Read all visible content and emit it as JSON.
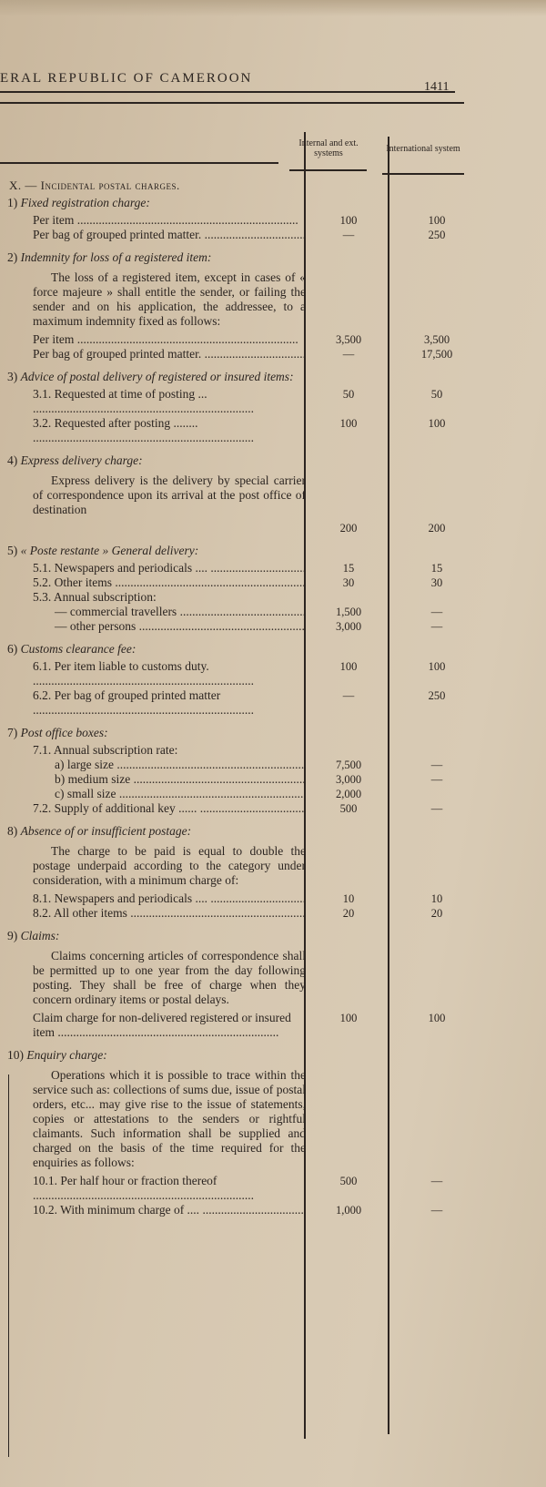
{
  "header": {
    "running_title": "ERAL REPUBLIC OF CAMEROON",
    "page_number": "1411"
  },
  "columns": {
    "internal": "Internal and ext. systems",
    "international": "International system"
  },
  "section": {
    "number": "X. —",
    "title": "Incidental postal charges."
  },
  "blocks": [
    {
      "num": "1)",
      "title": "Fixed registration charge:",
      "rows": [
        {
          "label": "Per item",
          "internal": "100",
          "international": "100"
        },
        {
          "label": "Per bag of grouped printed matter.",
          "internal": "—",
          "international": "250"
        }
      ]
    },
    {
      "num": "2)",
      "title": "Indemnity for loss of a registered item:",
      "paragraph": "The loss of a registered item, except in cases of « force majeure » shall entitle the sender, or failing the sender and on his application, the addressee, to a maximum indemnity fixed as follows:",
      "rows": [
        {
          "label": "Per item",
          "internal": "3,500",
          "international": "3,500"
        },
        {
          "label": "Per bag of grouped printed matter.",
          "internal": "—",
          "international": "17,500"
        }
      ]
    },
    {
      "num": "3)",
      "title": "Advice of postal delivery of registered or insured items:",
      "rows": [
        {
          "label": "3.1. Requested at time of posting ...",
          "internal": "50",
          "international": "50"
        },
        {
          "label": "3.2. Requested after posting ........",
          "internal": "100",
          "international": "100"
        }
      ]
    },
    {
      "num": "4)",
      "title": "Express delivery charge:",
      "paragraph": "Express delivery is the delivery by special carrier of correspondence upon its arrival at the post office of destination",
      "rows": [
        {
          "label": "",
          "internal": "200",
          "international": "200"
        }
      ]
    },
    {
      "num": "5)",
      "title": "« Poste restante » General delivery:",
      "rows": [
        {
          "label": "5.1. Newspapers and periodicals ....",
          "internal": "15",
          "international": "15"
        },
        {
          "label": "5.2. Other items",
          "internal": "30",
          "international": "30"
        },
        {
          "label": "5.3. Annual subscription:",
          "internal": "",
          "international": "",
          "nodots": true
        },
        {
          "label": "— commercial travellers",
          "internal": "1,500",
          "international": "—",
          "sub": true
        },
        {
          "label": "— other persons",
          "internal": "3,000",
          "international": "—",
          "sub": true
        }
      ]
    },
    {
      "num": "6)",
      "title": "Customs clearance fee:",
      "rows": [
        {
          "label": "6.1. Per item liable to customs duty.",
          "internal": "100",
          "international": "100"
        },
        {
          "label": "6.2. Per bag of grouped printed matter",
          "internal": "—",
          "international": "250"
        }
      ]
    },
    {
      "num": "7)",
      "title": "Post office boxes:",
      "rows": [
        {
          "label": "7.1. Annual subscription rate:",
          "internal": "",
          "international": "",
          "nodots": true
        },
        {
          "label": "a) large size",
          "internal": "7,500",
          "international": "—",
          "sub": true
        },
        {
          "label": "b) medium size",
          "internal": "3,000",
          "international": "—",
          "sub": true
        },
        {
          "label": "c) small size",
          "internal": "2,000",
          "international": "",
          "sub": true
        },
        {
          "label": "7.2. Supply of additional key ......",
          "internal": "500",
          "international": "—"
        }
      ]
    },
    {
      "num": "8)",
      "title": "Absence of or insufficient postage:",
      "paragraph": "The charge to be paid is equal to double the postage underpaid according to the category under consideration, with a minimum charge of:",
      "rows": [
        {
          "label": "8.1. Newspapers and periodicals ....",
          "internal": "10",
          "international": "10"
        },
        {
          "label": "8.2. All other items",
          "internal": "20",
          "international": "20"
        }
      ]
    },
    {
      "num": "9)",
      "title": "Claims:",
      "paragraph": "Claims concerning articles of correspondence shall be permitted up to one year from the day following posting. They shall be free of charge when they concern ordinary items or postal delays.",
      "rows": [
        {
          "label": "Claim charge for non-delivered registered or insured item",
          "internal": "100",
          "international": "100"
        }
      ]
    },
    {
      "num": "10)",
      "title": "Enquiry charge:",
      "paragraph": "Operations which it is possible to trace within the service such as: collections of sums due, issue of postal orders, etc... may give rise to the issue of statements, copies or attestations to the senders or rightful claimants. Such information shall be supplied and charged on the basis of the time required for the enquiries as follows:",
      "rows": [
        {
          "label": "10.1. Per half hour or fraction thereof",
          "internal": "500",
          "international": "—"
        },
        {
          "label": "10.2. With minimum charge of ....",
          "internal": "1,000",
          "international": "—"
        }
      ]
    }
  ]
}
